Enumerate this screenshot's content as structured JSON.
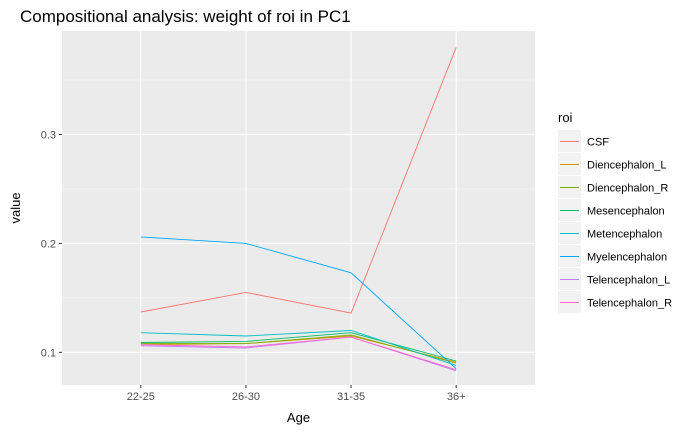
{
  "chart_data": {
    "type": "line",
    "title": "Compositional analysis: weight of roi in PC1",
    "xlabel": "Age",
    "ylabel": "value",
    "categories": [
      "22-25",
      "26-30",
      "31-35",
      "36+"
    ],
    "ylim": [
      0.07,
      0.395
    ],
    "yticks": [
      0.1,
      0.2,
      0.3
    ],
    "ytick_labels": [
      "0.1",
      "0.2",
      "0.3"
    ],
    "grid": true,
    "legend_title": "roi",
    "legend_position": "right",
    "series": [
      {
        "name": "CSF",
        "color": "#F8766D",
        "values": [
          0.137,
          0.155,
          0.136,
          0.38
        ]
      },
      {
        "name": "Diencephalon_L",
        "color": "#CD9600",
        "values": [
          0.107,
          0.108,
          0.115,
          0.091
        ]
      },
      {
        "name": "Diencephalon_R",
        "color": "#7CAE00",
        "values": [
          0.108,
          0.108,
          0.116,
          0.09
        ]
      },
      {
        "name": "Mesencephalon",
        "color": "#00BE67",
        "values": [
          0.109,
          0.11,
          0.118,
          0.092
        ]
      },
      {
        "name": "Metencephalon",
        "color": "#00BFC4",
        "values": [
          0.118,
          0.115,
          0.12,
          0.088
        ]
      },
      {
        "name": "Myelencephalon",
        "color": "#00A9FF",
        "values": [
          0.206,
          0.2,
          0.173,
          0.085
        ]
      },
      {
        "name": "Telencephalon_L",
        "color": "#C77CFF",
        "values": [
          0.106,
          0.104,
          0.114,
          0.083
        ]
      },
      {
        "name": "Telencephalon_R",
        "color": "#FF61CC",
        "values": [
          0.107,
          0.105,
          0.114,
          0.084
        ]
      }
    ]
  }
}
